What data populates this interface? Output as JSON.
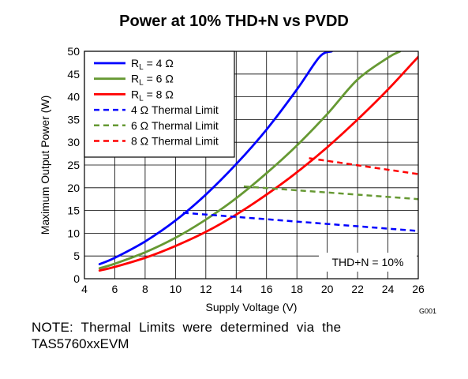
{
  "chart_data": {
    "type": "line",
    "title": "Power at 10% THD+N vs PVDD",
    "xlabel": "Supply Voltage (V)",
    "ylabel": "Maximum Output Power (W)",
    "xlim": [
      4,
      26
    ],
    "ylim": [
      0,
      50
    ],
    "xticks": [
      4,
      6,
      8,
      10,
      12,
      14,
      16,
      18,
      20,
      22,
      24,
      26
    ],
    "yticks": [
      0,
      5,
      10,
      15,
      20,
      25,
      30,
      35,
      40,
      45,
      50
    ],
    "grid": true,
    "legend_position": "top-left",
    "annotation": "THD+N = 10%",
    "figure_id": "G001",
    "series": [
      {
        "name": "RL = 4 Ω",
        "name_main": "R",
        "name_sub": "L",
        "name_rest": " = 4 Ω",
        "color": "#0000ff",
        "dash": "solid",
        "x": [
          5,
          6,
          8,
          10,
          12,
          14,
          16,
          18,
          19.5,
          20.3
        ],
        "y": [
          3.2,
          4.6,
          8.2,
          12.8,
          18.5,
          25.2,
          32.8,
          41.6,
          48.8,
          50
        ]
      },
      {
        "name": "RL = 6 Ω",
        "name_main": "R",
        "name_sub": "L",
        "name_rest": " = 6 Ω",
        "color": "#669933",
        "dash": "solid",
        "x": [
          5,
          6,
          8,
          10,
          12,
          14,
          16,
          18,
          20,
          22,
          24,
          24.8
        ],
        "y": [
          2.3,
          3.3,
          5.8,
          9.0,
          13.0,
          17.7,
          23.2,
          29.3,
          36.2,
          43.8,
          48.6,
          50
        ]
      },
      {
        "name": "RL = 8 Ω",
        "name_main": "R",
        "name_sub": "L",
        "name_rest": " = 8 Ω",
        "color": "#ff0000",
        "dash": "solid",
        "x": [
          5,
          6,
          8,
          10,
          12,
          14,
          16,
          18,
          20,
          22,
          24,
          26
        ],
        "y": [
          1.8,
          2.6,
          4.6,
          7.2,
          10.3,
          14.1,
          18.5,
          23.4,
          28.9,
          35.0,
          41.6,
          48.8
        ]
      },
      {
        "name": "4 Ω Thermal Limit",
        "name_main": "4 Ω Thermal Limit",
        "color": "#0000ff",
        "dash": "dashed",
        "x": [
          10.5,
          26
        ],
        "y": [
          14.5,
          10.5
        ]
      },
      {
        "name": "6 Ω Thermal Limit",
        "name_main": "6 Ω Thermal Limit",
        "color": "#669933",
        "dash": "dashed",
        "x": [
          14.5,
          26
        ],
        "y": [
          20.3,
          17.5
        ]
      },
      {
        "name": "8 Ω Thermal Limit",
        "name_main": "8 Ω Thermal Limit",
        "color": "#ff0000",
        "dash": "dashed",
        "x": [
          18.8,
          26
        ],
        "y": [
          26.5,
          23.0
        ]
      }
    ]
  },
  "note": {
    "line1": "NOTE:  Thermal  Limits  were  determined  via  the",
    "line2": "TAS5760xxEVM"
  }
}
